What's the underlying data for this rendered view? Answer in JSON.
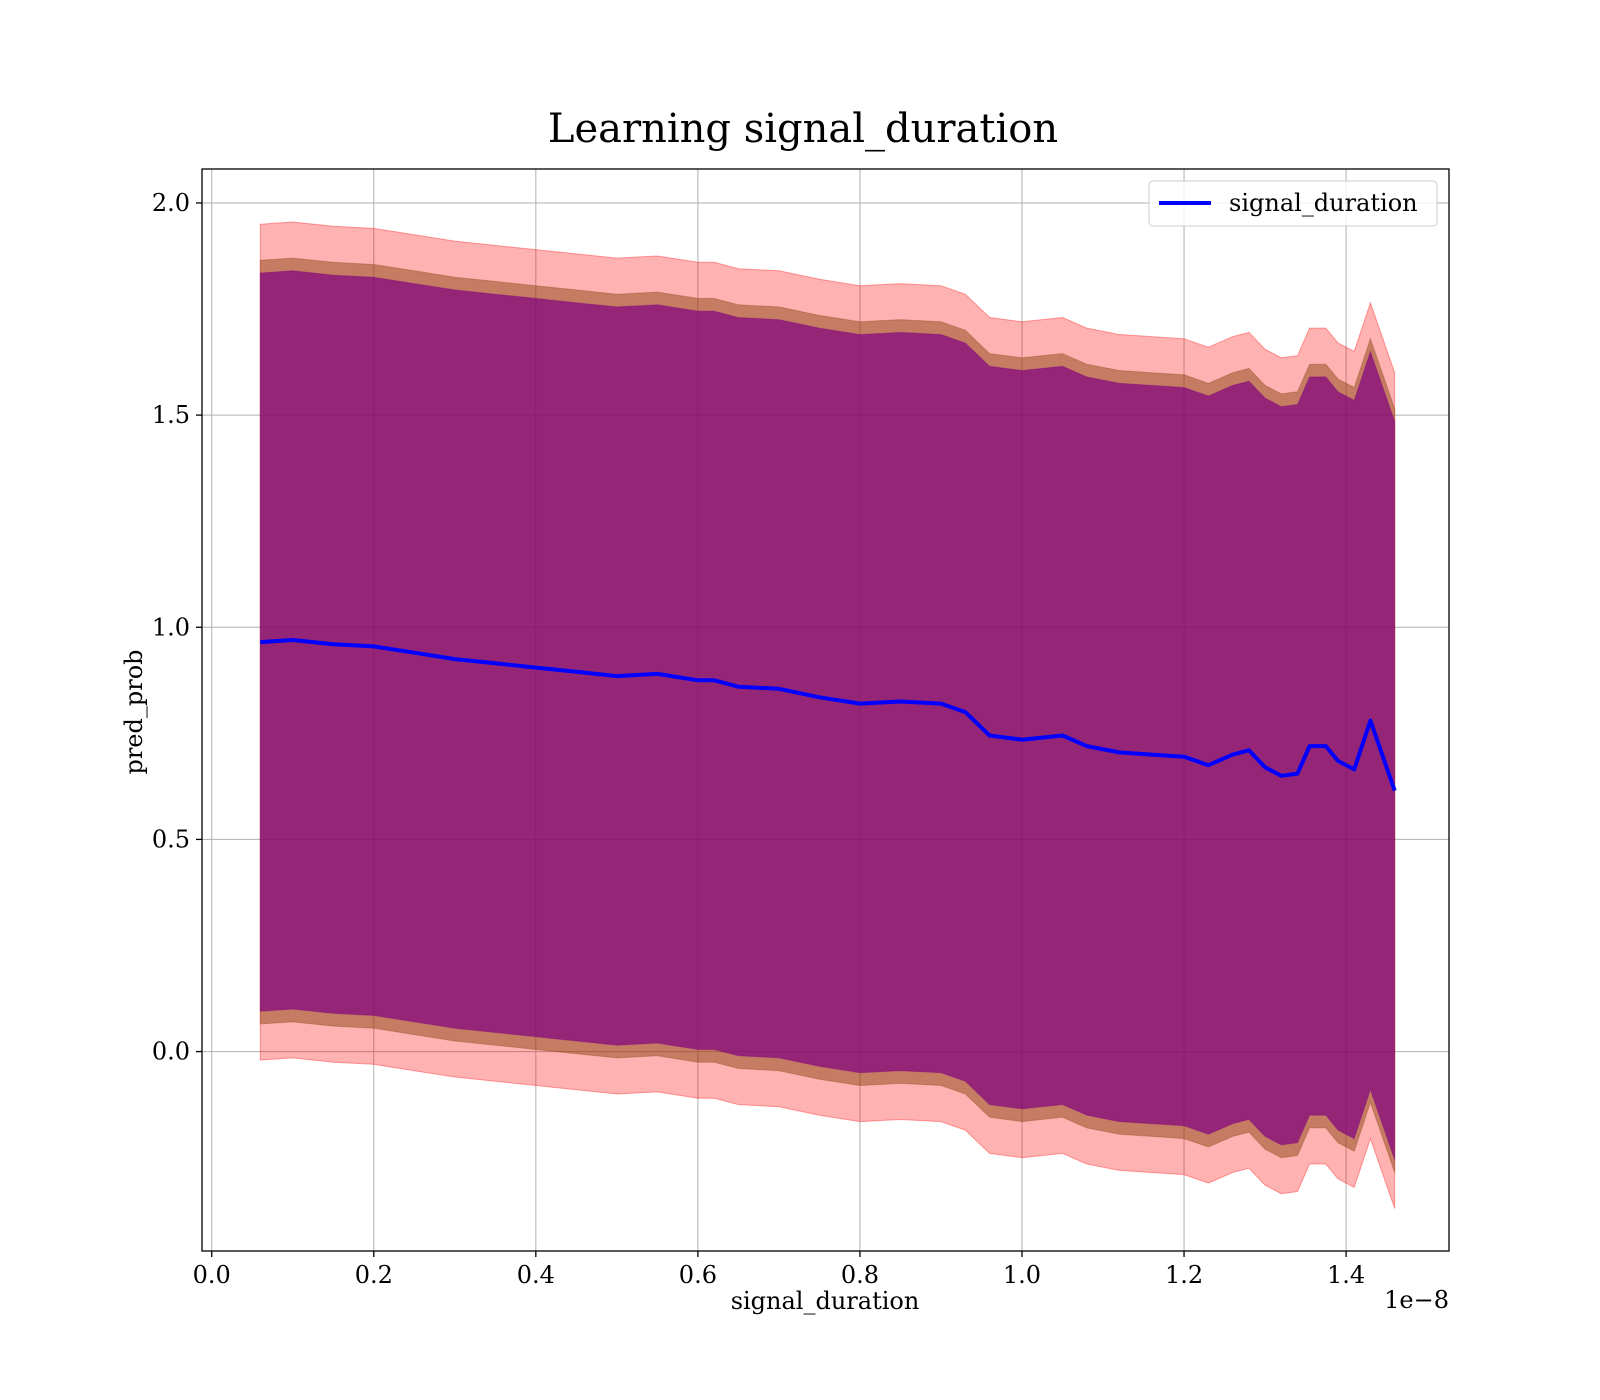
{
  "chart_data": {
    "type": "line",
    "title": "Learning signal_duration",
    "xlabel": "signal_duration",
    "ylabel": "pred_prob",
    "x_offset_label": "1e−8",
    "xlim": [
      -0.012,
      1.527
    ],
    "ylim": [
      -0.47,
      2.08
    ],
    "grid": true,
    "legend_position": "top-right",
    "x_ticks": [
      0.0,
      0.2,
      0.4,
      0.6,
      0.8,
      1.0,
      1.2,
      1.4
    ],
    "x_tick_labels": [
      "0.0",
      "0.2",
      "0.4",
      "0.6",
      "0.8",
      "1.0",
      "1.2",
      "1.4"
    ],
    "y_ticks": [
      0.0,
      0.5,
      1.0,
      1.5,
      2.0
    ],
    "y_tick_labels": [
      "0.0",
      "0.5",
      "1.0",
      "1.5",
      "2.0"
    ],
    "colors": {
      "line": "#0000ff",
      "band_outer": "#ff0000",
      "band_middle": "#8b4513",
      "band_inner": "#800080"
    },
    "x": [
      0.06,
      0.1,
      0.15,
      0.2,
      0.25,
      0.3,
      0.35,
      0.4,
      0.45,
      0.5,
      0.55,
      0.6,
      0.62,
      0.65,
      0.7,
      0.75,
      0.8,
      0.85,
      0.9,
      0.93,
      0.96,
      1.0,
      1.05,
      1.08,
      1.12,
      1.16,
      1.2,
      1.23,
      1.26,
      1.28,
      1.3,
      1.32,
      1.34,
      1.355,
      1.375,
      1.39,
      1.41,
      1.43,
      1.46
    ],
    "series": [
      {
        "name": "signal_duration",
        "values": [
          0.965,
          0.97,
          0.96,
          0.955,
          0.94,
          0.925,
          0.915,
          0.905,
          0.895,
          0.885,
          0.89,
          0.875,
          0.875,
          0.86,
          0.855,
          0.835,
          0.82,
          0.825,
          0.82,
          0.8,
          0.745,
          0.735,
          0.745,
          0.72,
          0.705,
          0.7,
          0.695,
          0.675,
          0.7,
          0.71,
          0.67,
          0.65,
          0.655,
          0.72,
          0.72,
          0.685,
          0.665,
          0.78,
          0.615
        ]
      }
    ],
    "band_half_widths": [
      0.985,
      0.9,
      0.87
    ]
  }
}
